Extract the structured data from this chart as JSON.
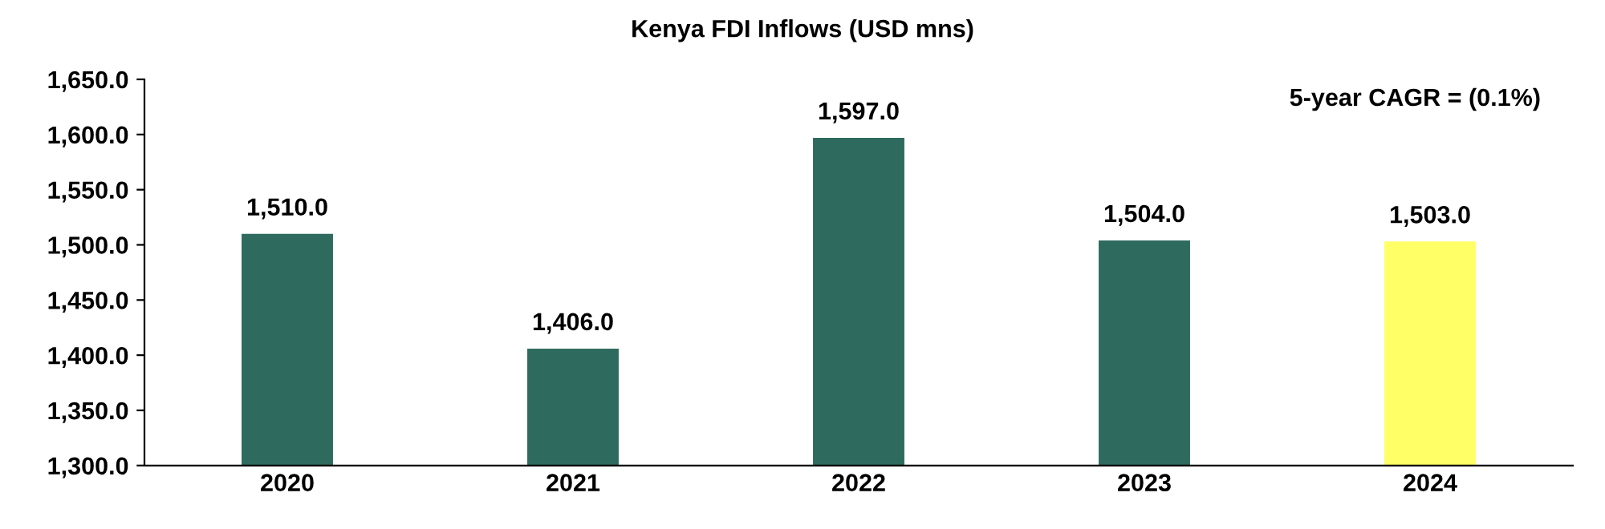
{
  "chart_data": {
    "type": "bar",
    "title": "Kenya FDI Inflows (USD mns)",
    "categories": [
      "2020",
      "2021",
      "2022",
      "2023",
      "2024"
    ],
    "values": [
      1510.0,
      1406.0,
      1597.0,
      1504.0,
      1503.0
    ],
    "colors": [
      "#2e6b5e",
      "#2e6b5e",
      "#2e6b5e",
      "#2e6b5e",
      "#ffff66"
    ],
    "value_labels": [
      "1,510.0",
      "1,406.0",
      "1,597.0",
      "1,504.0",
      "1,503.0"
    ],
    "ylim": [
      1300,
      1650
    ],
    "yticks": [
      {
        "value": 1300,
        "label": "1,300.0"
      },
      {
        "value": 1350,
        "label": "1,350.0"
      },
      {
        "value": 1400,
        "label": "1,400.0"
      },
      {
        "value": 1450,
        "label": "1,450.0"
      },
      {
        "value": 1500,
        "label": "1,500.0"
      },
      {
        "value": 1550,
        "label": "1,550.0"
      },
      {
        "value": 1600,
        "label": "1,600.0"
      },
      {
        "value": 1650,
        "label": "1,650.0"
      }
    ],
    "annotations": [
      "5-year CAGR = (0.1%)"
    ],
    "grid": false,
    "legend": false
  }
}
